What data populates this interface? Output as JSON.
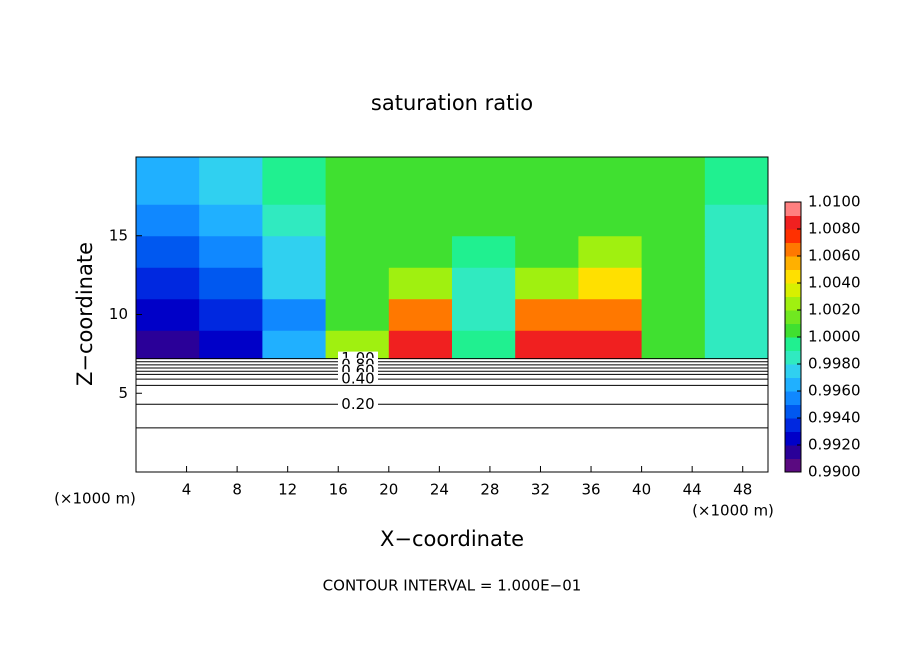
{
  "chart_data": {
    "type": "contour",
    "title": "saturation ratio",
    "xlabel": "X−coordinate",
    "ylabel": "Z−coordinate",
    "x_unit": "(×1000 m)",
    "footer": "CONTOUR INTERVAL = 1.000E−01",
    "xlim": [
      0,
      50
    ],
    "ylim": [
      0,
      20
    ],
    "xticks": [
      4,
      8,
      12,
      16,
      20,
      24,
      28,
      32,
      36,
      40,
      44,
      48
    ],
    "yticks": [
      5,
      10,
      15
    ],
    "x_edges": [
      0,
      5,
      10,
      15,
      20,
      25,
      30,
      35,
      40,
      45,
      50
    ],
    "z_edges": [
      7.2,
      9,
      11,
      13,
      15,
      17,
      20
    ],
    "field": [
      [
        0.991,
        0.992,
        0.996,
        1.002,
        1.008,
        0.999,
        1.008,
        1.009,
        1.0,
        0.998
      ],
      [
        0.992,
        0.993,
        0.995,
        1.001,
        1.006,
        0.998,
        1.006,
        1.007,
        1.0,
        0.998
      ],
      [
        0.993,
        0.994,
        0.997,
        1.0,
        1.003,
        0.998,
        1.003,
        1.005,
        1.0,
        0.998
      ],
      [
        0.994,
        0.995,
        0.997,
        1.0,
        1.001,
        0.999,
        1.001,
        1.002,
        1.0,
        0.998
      ],
      [
        0.995,
        0.996,
        0.998,
        1.0,
        1.0005,
        1.0,
        1.0008,
        1.001,
        1.0,
        0.998
      ],
      [
        0.996,
        0.997,
        0.999,
        1.0,
        1.0,
        1.0,
        1.0005,
        1.0,
        1.0,
        0.999
      ]
    ],
    "contours": [
      {
        "z": 7.2,
        "label": "1.00"
      },
      {
        "z": 7.0
      },
      {
        "z": 6.8,
        "label": "0.80"
      },
      {
        "z": 6.6
      },
      {
        "z": 6.4,
        "label": "0.60"
      },
      {
        "z": 6.2
      },
      {
        "z": 5.9,
        "label": "0.40"
      },
      {
        "z": 5.5
      },
      {
        "z": 4.3,
        "label": "0.20"
      },
      {
        "z": 2.8
      }
    ],
    "colorbar_lim": [
      0.99,
      1.01
    ],
    "colorbar_ticks": [
      {
        "value": 0.99,
        "label": "0.9900"
      },
      {
        "value": 0.992,
        "label": "0.9920"
      },
      {
        "value": 0.994,
        "label": "0.9940"
      },
      {
        "value": 0.996,
        "label": "0.9960"
      },
      {
        "value": 0.998,
        "label": "0.9980"
      },
      {
        "value": 1.0,
        "label": "1.0000"
      },
      {
        "value": 1.002,
        "label": "1.0020"
      },
      {
        "value": 1.004,
        "label": "1.0040"
      },
      {
        "value": 1.006,
        "label": "1.0060"
      },
      {
        "value": 1.008,
        "label": "1.0080"
      },
      {
        "value": 1.01,
        "label": "1.0100"
      }
    ],
    "colors": [
      "#5a0a80",
      "#2a0098",
      "#0000c8",
      "#0028e0",
      "#0058f0",
      "#1088ff",
      "#20b0ff",
      "#30d0f0",
      "#30eac0",
      "#20f090",
      "#40e030",
      "#70e820",
      "#a0f010",
      "#d8f000",
      "#ffe000",
      "#ffb000",
      "#ff7800",
      "#ff3000",
      "#f02020",
      "#ff8080"
    ]
  }
}
